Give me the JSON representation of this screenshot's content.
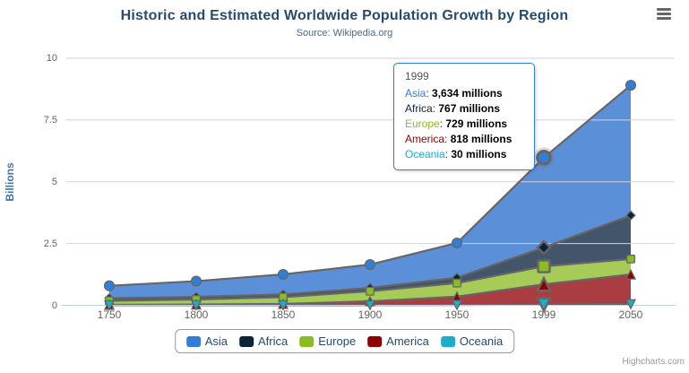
{
  "chart": {
    "credits": "Highcharts.com",
    "export_menu_icon": "hamburger-menu-icon",
    "background_color": "#ffffff",
    "title_color": "#274b6d",
    "axis_label_color": "#636363"
  },
  "chart_data": {
    "type": "area",
    "stacking": "normal",
    "title": "Historic and Estimated Worldwide Population Growth by Region",
    "subtitle": "Source: Wikipedia.org",
    "ylabel": "Billions",
    "xlabel": "",
    "unit": "millions",
    "grid": true,
    "legend_position": "bottom",
    "categories": [
      "1750",
      "1800",
      "1850",
      "1900",
      "1950",
      "1999",
      "2050"
    ],
    "yticks": [
      "0",
      "2.5",
      "5",
      "7.5",
      "10"
    ],
    "ylim": [
      0,
      10
    ],
    "series": [
      {
        "name": "Asia",
        "color": "#2f7ed8",
        "fill": "#5b90d9",
        "marker": "circle",
        "values": [
          502,
          635,
          809,
          947,
          1402,
          3634,
          5268
        ]
      },
      {
        "name": "Africa",
        "color": "#0d233a",
        "fill": "#43556a",
        "marker": "diamond",
        "values": [
          106,
          107,
          111,
          133,
          221,
          767,
          1766
        ]
      },
      {
        "name": "Europe",
        "color": "#8bbc21",
        "fill": "#a6cb58",
        "marker": "square",
        "values": [
          163,
          203,
          276,
          408,
          547,
          729,
          628
        ]
      },
      {
        "name": "America",
        "color": "#910000",
        "fill": "#aa3d41",
        "marker": "triangle",
        "values": [
          18,
          31,
          54,
          156,
          339,
          818,
          1201
        ]
      },
      {
        "name": "Oceania",
        "color": "#1aadce",
        "fill": "#4dbdd6",
        "marker": "triangle-down",
        "values": [
          2,
          2,
          2,
          6,
          13,
          30,
          46
        ]
      }
    ],
    "hover": {
      "category": "1999",
      "index": 5,
      "series": "Asia"
    },
    "tooltip": {
      "header": "1999",
      "rows": [
        {
          "name": "Asia",
          "value": "3,634 millions"
        },
        {
          "name": "Africa",
          "value": "767 millions"
        },
        {
          "name": "Europe",
          "value": "729 millions"
        },
        {
          "name": "America",
          "value": "818 millions"
        },
        {
          "name": "Oceania",
          "value": "30 millions"
        }
      ]
    }
  }
}
